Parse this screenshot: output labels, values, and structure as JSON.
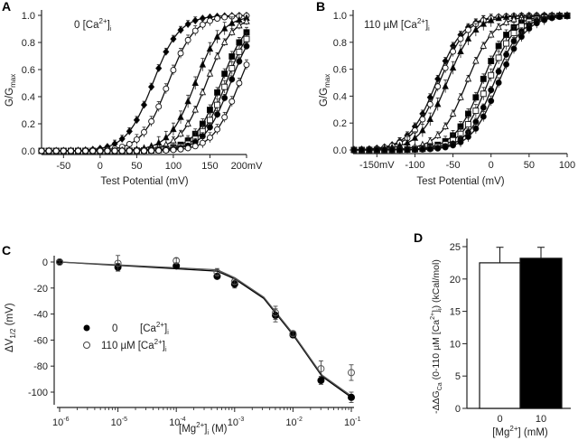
{
  "chart_data": [
    {
      "panel": "A",
      "type": "line",
      "annotation": "0 [Ca2+]i",
      "xlabel": "Test Potential (mV)",
      "ylabel": "G/Gmax",
      "xlim": [
        -80,
        200
      ],
      "ylim": [
        0,
        1.0
      ],
      "xticks": [
        "-50",
        "0",
        "50",
        "100",
        "150",
        "200mV"
      ],
      "xtick_values": [
        -50,
        0,
        50,
        100,
        150,
        200
      ],
      "yticks": [
        "0.0",
        "0.2",
        "0.4",
        "0.6",
        "0.8",
        "1.0"
      ],
      "ytick_values": [
        0,
        0.2,
        0.4,
        0.6,
        0.8,
        1.0
      ],
      "series": [
        {
          "name": "curve1",
          "marker": "filled-diamond",
          "v_half": 72,
          "slope": 18
        },
        {
          "name": "curve2",
          "marker": "open-circle",
          "v_half": 93,
          "slope": 18
        },
        {
          "name": "curve3",
          "marker": "filled-triangle",
          "v_half": 130,
          "slope": 18
        },
        {
          "name": "curve4",
          "marker": "open-triangle",
          "v_half": 145,
          "slope": 18
        },
        {
          "name": "curve5",
          "marker": "filled-square",
          "v_half": 165,
          "slope": 18
        },
        {
          "name": "curve6",
          "marker": "open-square",
          "v_half": 172,
          "slope": 18
        },
        {
          "name": "curve7",
          "marker": "filled-circle",
          "v_half": 178,
          "slope": 18
        },
        {
          "name": "curve8",
          "marker": "open-circle",
          "v_half": 190,
          "slope": 18
        }
      ]
    },
    {
      "panel": "B",
      "type": "line",
      "annotation": "110 µM [Ca2+]i",
      "xlabel": "Test Potential (mV)",
      "ylabel": "G/Gmax",
      "xlim": [
        -180,
        100
      ],
      "ylim": [
        0,
        1.0
      ],
      "xticks": [
        "-150mV",
        "-100",
        "-50",
        "0",
        "50",
        "100"
      ],
      "xtick_values": [
        -150,
        -100,
        -50,
        0,
        50,
        100
      ],
      "yticks": [
        "0.0",
        "0.2",
        "0.4",
        "0.6",
        "0.8",
        "1.0"
      ],
      "ytick_values": [
        0,
        0.2,
        0.4,
        0.6,
        0.8,
        1.0
      ],
      "series": [
        {
          "name": "curve1",
          "marker": "filled-diamond",
          "v_half": -72,
          "slope": 18
        },
        {
          "name": "curve2",
          "marker": "open-circle",
          "v_half": -68,
          "slope": 18
        },
        {
          "name": "curve3",
          "marker": "filled-triangle",
          "v_half": -58,
          "slope": 18
        },
        {
          "name": "curve4",
          "marker": "open-triangle",
          "v_half": -32,
          "slope": 18
        },
        {
          "name": "curve5",
          "marker": "filled-square",
          "v_half": -12,
          "slope": 18
        },
        {
          "name": "curve6",
          "marker": "open-square",
          "v_half": -4,
          "slope": 18
        },
        {
          "name": "curve7",
          "marker": "filled-circle",
          "v_half": 4,
          "slope": 18
        },
        {
          "name": "curve8",
          "marker": "filled-circle",
          "v_half": 10,
          "slope": 18
        }
      ]
    },
    {
      "panel": "C",
      "type": "scatter",
      "xlabel": "[Mg2+]i (M)",
      "ylabel": "ΔV1/2 (mV)",
      "xscale": "log",
      "xlim": [
        -6,
        -1
      ],
      "ylim": [
        -110,
        5
      ],
      "xticks": [
        "10-6",
        "10-5",
        "10-4",
        "10-3",
        "10-2",
        "10-1"
      ],
      "xtick_values": [
        -6,
        -5,
        -4,
        -3,
        -2,
        -1
      ],
      "yticks": [
        "0",
        "-20",
        "-40",
        "-60",
        "-80",
        "-100"
      ],
      "ytick_values": [
        0,
        -20,
        -40,
        -60,
        -80,
        -100
      ],
      "legend": [
        {
          "label": "0        [Ca2+]i",
          "marker": "filled-circle"
        },
        {
          "label": "110 µM [Ca2+]i",
          "marker": "open-circle"
        }
      ],
      "legend_position": "center-left",
      "series": [
        {
          "name": "0 [Ca2+]i",
          "marker": "filled",
          "log_mg": [
            -6,
            -5,
            -4,
            -3.3,
            -3,
            -2.3,
            -2,
            -1.52,
            -1
          ],
          "dv_half": [
            0,
            -4,
            -3,
            -11,
            -17,
            -41,
            -56,
            -91,
            -104
          ],
          "err": [
            1,
            3,
            2,
            2,
            3,
            5,
            2,
            3,
            4
          ]
        },
        {
          "name": "110 µM [Ca2+]i",
          "marker": "open",
          "log_mg": [
            -6,
            -5,
            -4,
            -3.3,
            -3,
            -2.3,
            -2,
            -1.52,
            -1
          ],
          "dv_half": [
            0,
            -1,
            1,
            -8,
            -15,
            -39,
            -55,
            -82,
            -85
          ],
          "err": [
            1,
            6,
            2,
            3,
            2,
            5,
            2,
            6,
            6
          ]
        }
      ],
      "fit_curves": [
        {
          "name": "fit-0-Ca",
          "points": [
            [
              -6,
              0
            ],
            [
              -3.3,
              -7
            ],
            [
              -3,
              -13
            ],
            [
              -2.5,
              -28
            ],
            [
              -2,
              -56
            ],
            [
              -1.5,
              -88
            ],
            [
              -1,
              -104
            ]
          ]
        },
        {
          "name": "fit-110-Ca",
          "points": [
            [
              -6,
              0
            ],
            [
              -3.3,
              -6
            ],
            [
              -3,
              -12
            ],
            [
              -2.5,
              -27
            ],
            [
              -2,
              -55
            ],
            [
              -1.5,
              -87
            ],
            [
              -1,
              -103
            ]
          ]
        }
      ]
    },
    {
      "panel": "D",
      "type": "bar",
      "categories": [
        "0",
        "10"
      ],
      "values": [
        22.5,
        23.2
      ],
      "errors": [
        2.4,
        1.7
      ],
      "bar_colors": [
        "#ffffff",
        "#000000"
      ],
      "xlabel": "[Mg2+] (mM)",
      "ylabel": "-ΔΔGCa (0-110 µM [Ca2+]i) (kCal/mol)",
      "ylim": [
        0,
        25
      ],
      "yticks": [
        "0",
        "5",
        "10",
        "15",
        "20",
        "25"
      ],
      "ytick_values": [
        0,
        5,
        10,
        15,
        20,
        25
      ]
    }
  ],
  "panels": {
    "A": {
      "letter": "A",
      "annot_main": "0 [Ca",
      "annot_sup": "2+",
      "annot_post": "]",
      "annot_sub": "i",
      "ylabel_main": "G/G",
      "ylabel_sub": "max",
      "xlabel": "Test Potential (mV)"
    },
    "B": {
      "letter": "B",
      "annot_main": "110 µM [Ca",
      "annot_sup": "2+",
      "annot_post": "]",
      "annot_sub": "i",
      "ylabel_main": "G/G",
      "ylabel_sub": "max",
      "xlabel": "Test Potential (mV)"
    },
    "C": {
      "letter": "C",
      "ylabel_main": "ΔV",
      "ylabel_sub": "1/2",
      "ylabel_post": " (mV)",
      "xlabel_main": "[Mg",
      "xlabel_sup": "2+",
      "xlabel_post": "]",
      "xlabel_sub": "i",
      "xlabel_end": " (M)",
      "legend1_val": "0",
      "legend2_val": "110 µM",
      "legend_ca": "[Ca",
      "legend_sup": "2+",
      "legend_post": "]",
      "legend_sub": "i"
    },
    "D": {
      "letter": "D",
      "ylabel_a": "-ΔΔG",
      "ylabel_sub": "Ca",
      "ylabel_b": " (0-110 µM [Ca",
      "ylabel_sup": "2+",
      "ylabel_c": "]",
      "ylabel_sub2": "i",
      "ylabel_d": ") (kCal/mol)",
      "xlabel_main": "[Mg",
      "xlabel_sup": "2+",
      "xlabel_post": "] (mM)"
    }
  }
}
